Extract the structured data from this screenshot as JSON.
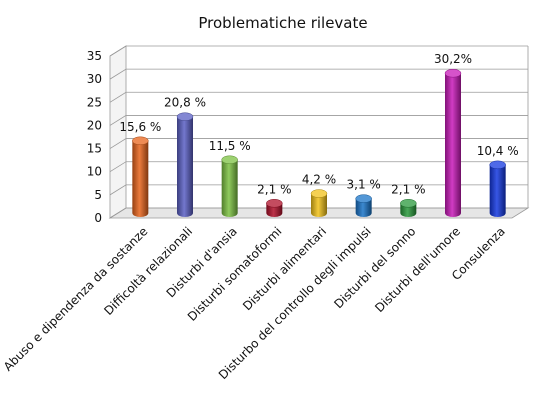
{
  "chart_data": {
    "type": "bar",
    "title": "Problematiche rilevate",
    "xlabel": "",
    "ylabel": "",
    "ylim": [
      0,
      35
    ],
    "yticks": [
      "0",
      "5",
      "10",
      "15",
      "20",
      "25",
      "30",
      "35"
    ],
    "grid": true,
    "legend": "none",
    "categories": [
      "Abuso e dipendenza da sostanze",
      "Difficoltà relazionali",
      "Disturbi d'ansia",
      "Disturbi somatoformi",
      "Disturbi alimentari",
      "Disturbo del controllo degli impulsi",
      "Disturbi del sonno",
      "Disturbi dell'umore",
      "Consulenza"
    ],
    "values": [
      15.6,
      20.8,
      11.5,
      2.1,
      4.2,
      3.1,
      2.1,
      30.2,
      10.4
    ],
    "data_labels": [
      "15,6 %",
      "20,8 %",
      "11,5 %",
      "2,1 %",
      "4,2 %",
      "3,1 %",
      "2,1 %",
      "30,2%",
      "10,4 %"
    ],
    "colors": [
      "#e8641b",
      "#5a5fc4",
      "#7cc242",
      "#b0102a",
      "#f2c21a",
      "#1a74c8",
      "#2a9a3c",
      "#c81ab8",
      "#1438e0"
    ]
  }
}
